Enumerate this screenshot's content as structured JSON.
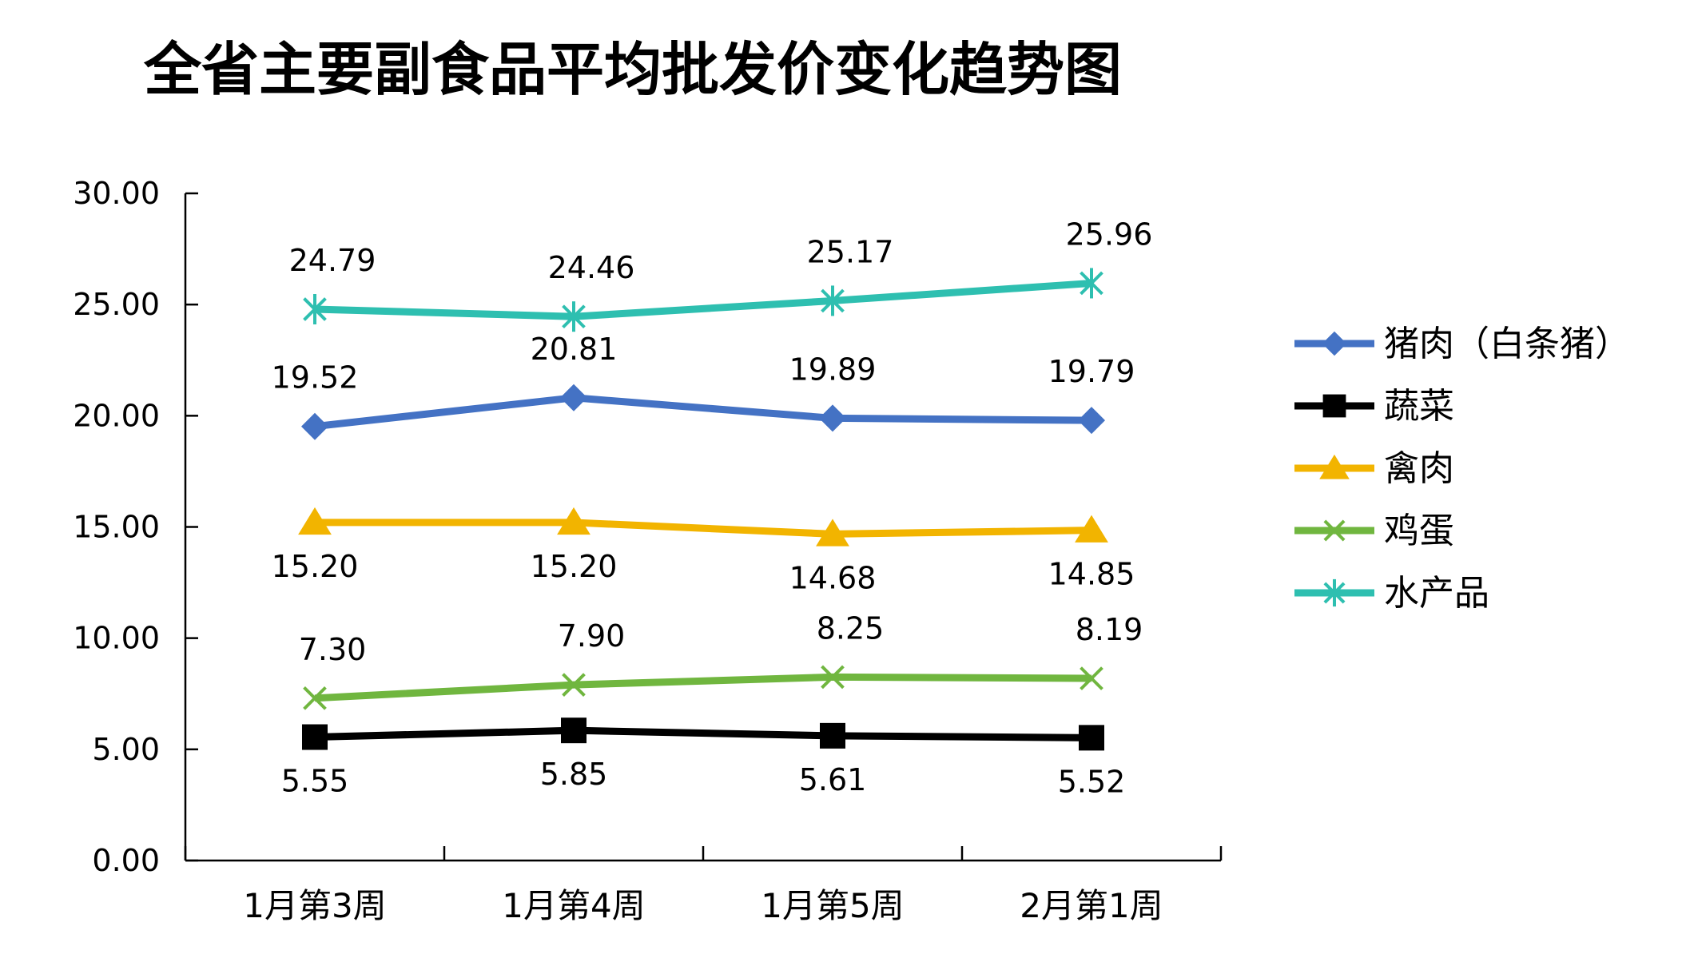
{
  "chart_data": {
    "type": "line",
    "title": "全省主要副食品平均批发价变化趋势图",
    "categories": [
      "1月第3周",
      "1月第4周",
      "1月第5周",
      "2月第1周"
    ],
    "ylim": [
      0,
      30
    ],
    "yticks": [
      "0.00",
      "5.00",
      "10.00",
      "15.00",
      "20.00",
      "25.00",
      "30.00"
    ],
    "grid": false,
    "legend_position": "right",
    "series": [
      {
        "name": "猪肉（白条猪）",
        "color": "#4472C4",
        "marker": "diamond",
        "values": [
          19.52,
          20.81,
          19.89,
          19.79
        ],
        "labels": [
          "19.52",
          "20.81",
          "19.89",
          "19.79"
        ],
        "label_position": "above"
      },
      {
        "name": "蔬菜",
        "color": "#000000",
        "marker": "square",
        "values": [
          5.55,
          5.85,
          5.61,
          5.52
        ],
        "labels": [
          "5.55",
          "5.85",
          "5.61",
          "5.52"
        ],
        "label_position": "below"
      },
      {
        "name": "禽肉",
        "color": "#F2B400",
        "marker": "triangle",
        "values": [
          15.2,
          15.2,
          14.68,
          14.85
        ],
        "labels": [
          "15.20",
          "15.20",
          "14.68",
          "14.85"
        ],
        "label_position": "below"
      },
      {
        "name": "鸡蛋",
        "color": "#70B63F",
        "marker": "x",
        "values": [
          7.3,
          7.9,
          8.25,
          8.19
        ],
        "labels": [
          "7.30",
          "7.90",
          "8.25",
          "8.19"
        ],
        "label_position": "above"
      },
      {
        "name": "水产品",
        "color": "#2EBFB0",
        "marker": "star",
        "values": [
          24.79,
          24.46,
          25.17,
          25.96
        ],
        "labels": [
          "24.79",
          "24.46",
          "25.17",
          "25.96"
        ],
        "label_position": "above"
      }
    ]
  }
}
